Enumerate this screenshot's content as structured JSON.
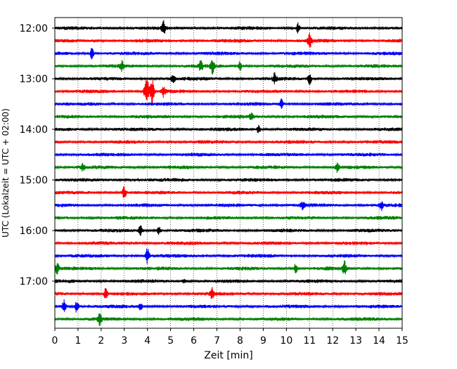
{
  "chart_data": {
    "type": "line",
    "title": "",
    "xlabel": "Zeit  [min]",
    "ylabel": "UTC (Lokalzeit = UTC + 02:00)",
    "xlim": [
      0,
      15
    ],
    "x_ticks": [
      "0",
      "1",
      "2",
      "3",
      "4",
      "5",
      "6",
      "7",
      "8",
      "9",
      "10",
      "11",
      "12",
      "13",
      "14",
      "15"
    ],
    "y_ticks": [
      "12:00",
      "13:00",
      "14:00",
      "15:00",
      "16:00",
      "17:00"
    ],
    "grid": "vertical dotted lines at each minute",
    "line_interval_minutes": 15,
    "colors": [
      "#000000",
      "#ff0000",
      "#0000ff",
      "#008000"
    ],
    "series": [
      {
        "start": "12:00",
        "color": "#000000",
        "events": [
          [
            4.7,
            1.0
          ],
          [
            10.5,
            0.8
          ]
        ]
      },
      {
        "start": "12:15",
        "color": "#ff0000",
        "events": [
          [
            11.0,
            1.1
          ]
        ]
      },
      {
        "start": "12:30",
        "color": "#0000ff",
        "events": [
          [
            1.6,
            0.9
          ]
        ]
      },
      {
        "start": "12:45",
        "color": "#008000",
        "events": [
          [
            2.9,
            0.8
          ],
          [
            6.3,
            0.9
          ],
          [
            6.8,
            1.2
          ],
          [
            8.0,
            0.7
          ]
        ]
      },
      {
        "start": "13:00",
        "color": "#000000",
        "events": [
          [
            5.1,
            0.9
          ],
          [
            9.5,
            0.8
          ],
          [
            11.0,
            1.0
          ]
        ]
      },
      {
        "start": "13:15",
        "color": "#ff0000",
        "events": [
          [
            3.9,
            1.1
          ],
          [
            4.0,
            1.6
          ],
          [
            4.2,
            2.2
          ],
          [
            4.7,
            0.9
          ]
        ]
      },
      {
        "start": "13:30",
        "color": "#0000ff",
        "events": [
          [
            9.8,
            0.8
          ]
        ]
      },
      {
        "start": "13:45",
        "color": "#008000",
        "events": [
          [
            8.5,
            0.6
          ]
        ]
      },
      {
        "start": "14:00",
        "color": "#000000",
        "events": [
          [
            8.8,
            0.6
          ]
        ]
      },
      {
        "start": "14:15",
        "color": "#ff0000",
        "events": []
      },
      {
        "start": "14:30",
        "color": "#0000ff",
        "events": []
      },
      {
        "start": "14:45",
        "color": "#008000",
        "events": [
          [
            1.2,
            0.6
          ],
          [
            12.2,
            0.7
          ]
        ]
      },
      {
        "start": "15:00",
        "color": "#000000",
        "events": []
      },
      {
        "start": "15:15",
        "color": "#ff0000",
        "events": [
          [
            3.0,
            1.0
          ]
        ]
      },
      {
        "start": "15:30",
        "color": "#0000ff",
        "events": [
          [
            10.7,
            0.6
          ],
          [
            14.1,
            0.7
          ]
        ]
      },
      {
        "start": "15:45",
        "color": "#008000",
        "events": []
      },
      {
        "start": "16:00",
        "color": "#000000",
        "events": [
          [
            3.7,
            0.8
          ],
          [
            4.5,
            0.7
          ]
        ]
      },
      {
        "start": "16:15",
        "color": "#ff0000",
        "events": []
      },
      {
        "start": "16:30",
        "color": "#0000ff",
        "events": [
          [
            4.0,
            1.3
          ]
        ]
      },
      {
        "start": "16:45",
        "color": "#008000",
        "events": [
          [
            0.1,
            0.9
          ],
          [
            10.4,
            0.8
          ],
          [
            12.5,
            1.3
          ]
        ]
      },
      {
        "start": "17:00",
        "color": "#000000",
        "events": [
          [
            5.6,
            0.5
          ]
        ]
      },
      {
        "start": "17:15",
        "color": "#ff0000",
        "events": [
          [
            2.2,
            0.9
          ],
          [
            6.8,
            0.8
          ]
        ]
      },
      {
        "start": "17:30",
        "color": "#0000ff",
        "events": [
          [
            0.4,
            1.2
          ],
          [
            0.95,
            1.0
          ],
          [
            3.7,
            0.5
          ]
        ]
      },
      {
        "start": "17:45",
        "color": "#008000",
        "events": [
          [
            1.95,
            1.1
          ]
        ]
      }
    ]
  }
}
